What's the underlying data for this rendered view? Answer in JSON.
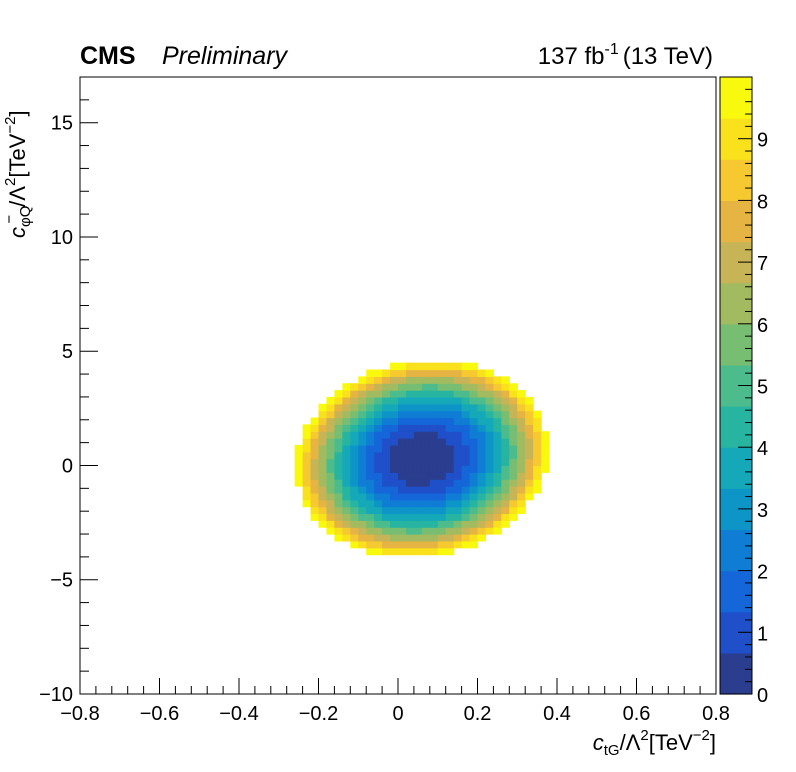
{
  "header": {
    "experiment": "CMS",
    "status": "Preliminary",
    "lumi_value": "137 fb",
    "lumi_exp": "-1",
    "energy": "(13 TeV)"
  },
  "chart_data": {
    "type": "heatmap",
    "title": "",
    "xlabel": {
      "main": "c",
      "sub": "tG",
      "rest": "/Λ",
      "exp": "2",
      "unit": "[TeV",
      "unit_exp": "−2",
      "close": "]"
    },
    "ylabel": {
      "main": "c",
      "sub": "φQ",
      "sup": "−",
      "rest": "/Λ",
      "exp": "2",
      "unit": "[TeV",
      "unit_exp": "−2",
      "close": "]"
    },
    "xlim": [
      -0.8,
      0.8
    ],
    "ylim": [
      -10,
      17
    ],
    "x_ticks": [
      -0.8,
      -0.6,
      -0.4,
      -0.2,
      0,
      0.2,
      0.4,
      0.6,
      0.8
    ],
    "x_tick_labels": [
      "−0.8",
      "−0.6",
      "−0.4",
      "−0.2",
      "0",
      "0.2",
      "0.4",
      "0.6",
      "0.8"
    ],
    "y_ticks": [
      -10,
      -5,
      0,
      5,
      10,
      15
    ],
    "y_tick_labels": [
      "−10",
      "−5",
      "0",
      "5",
      "10",
      "15"
    ],
    "z_range": [
      0,
      10
    ],
    "z_ticks": [
      0,
      1,
      2,
      3,
      4,
      5,
      6,
      7,
      8,
      9
    ],
    "z_tick_labels": [
      "0",
      "1",
      "2",
      "3",
      "4",
      "5",
      "6",
      "7",
      "8",
      "9"
    ],
    "colormap": [
      "#2a3d8f",
      "#1f4fc9",
      "#1566d8",
      "#0f7dd4",
      "#0e95c8",
      "#14a8b8",
      "#27b5a2",
      "#4dbc8c",
      "#78be72",
      "#a2bb60",
      "#c7b456",
      "#e6b442",
      "#f7c931",
      "#f9e21c",
      "#f9f90e"
    ],
    "surface": {
      "description_free": true,
      "minimum": {
        "x": 0.06,
        "y": 0.3
      },
      "scale_a": 0.305,
      "scale_b": 4.45,
      "rotation_deg": 28,
      "max_shown": 10
    }
  }
}
